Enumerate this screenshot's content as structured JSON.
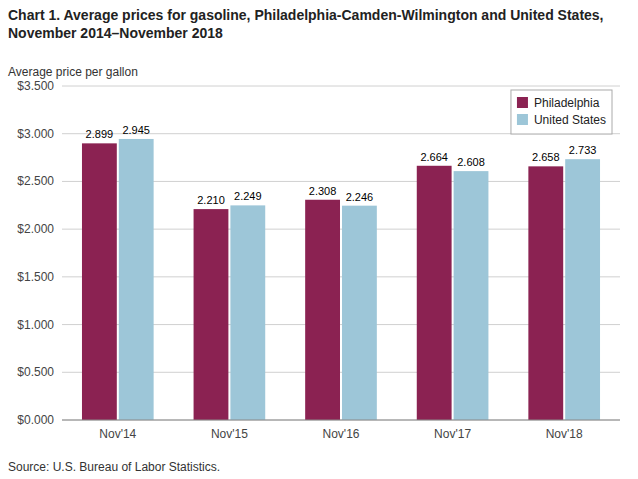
{
  "chart_data": {
    "type": "bar",
    "title": "Chart 1. Average prices for gasoline, Philadelphia-Camden-Wilmington and United States, November 2014–November 2018",
    "ylabel": "Average price per gallon",
    "source": "Source: U.S. Bureau of Labor Statistics.",
    "categories": [
      "Nov'14",
      "Nov'15",
      "Nov'16",
      "Nov'17",
      "Nov'18"
    ],
    "series": [
      {
        "name": "Philadelphia",
        "color": "#8B2252",
        "values": [
          2.899,
          2.21,
          2.308,
          2.664,
          2.658
        ],
        "value_labels": [
          "2.899",
          "2.210",
          "2.308",
          "2.664",
          "2.658"
        ]
      },
      {
        "name": "United States",
        "color": "#9DC6D8",
        "values": [
          2.945,
          2.249,
          2.246,
          2.608,
          2.733
        ],
        "value_labels": [
          "2.945",
          "2.249",
          "2.246",
          "2.608",
          "2.733"
        ]
      }
    ],
    "ylim": [
      0,
      3.5
    ],
    "yticks": [
      {
        "value": 0.0,
        "label": "$0.000"
      },
      {
        "value": 0.5,
        "label": "$0.500"
      },
      {
        "value": 1.0,
        "label": "$1.000"
      },
      {
        "value": 1.5,
        "label": "$1.500"
      },
      {
        "value": 2.0,
        "label": "$2.000"
      },
      {
        "value": 2.5,
        "label": "$2.500"
      },
      {
        "value": 3.0,
        "label": "$3.000"
      },
      {
        "value": 3.5,
        "label": "$3.500"
      }
    ],
    "grid": true,
    "legend": "upper right",
    "data_labels": true
  }
}
